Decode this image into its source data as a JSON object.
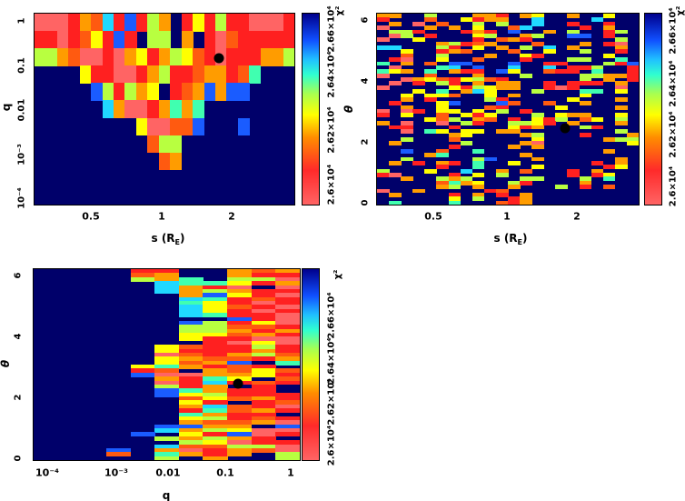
{
  "palette": [
    "#ff6464",
    "#ff2020",
    "#ff5a10",
    "#ff9c00",
    "#ffff00",
    "#b8ff40",
    "#40ffb0",
    "#20d8ff",
    "#1a5cff",
    "#00006a"
  ],
  "chart_data": [
    {
      "type": "heatmap",
      "xlabel_parts": [
        "s (R",
        "E",
        ")"
      ],
      "ylabel": "q",
      "xscale": "log",
      "yscale": "log",
      "xticks": [
        "0.5",
        "1",
        "2"
      ],
      "yticks": [
        "1",
        "0.1",
        "0.01",
        "10⁻³",
        "10⁻⁴"
      ],
      "xlim": [
        0.28,
        3.75
      ],
      "ylim": [
        7e-05,
        1.5
      ],
      "colorbar": {
        "label": "χ²",
        "ticks": [
          "2.6×10⁴",
          "2.62×10⁴",
          "2.64×10⁴",
          "2.66×10⁴"
        ]
      },
      "grid_levels_note": "0 = lowest χ², 9 = highest χ²; rows top→bottom",
      "grid": [
        "00013271815391415110001",
        "11012418195593910211111",
        "55320010341354210111335",
        "99994110013511233126999",
        "99999851534912383889999",
        "99999973001363699999999",
        "99999999940022899989999",
        "99999999992559999999999",
        "99999999999239999999999",
        "99999999999999999999999",
        "99999999999999999999999"
      ],
      "best_fit": {
        "s": 1.75,
        "q": 0.15
      }
    },
    {
      "type": "heatmap",
      "xlabel_parts": [
        "s (R",
        "E",
        ")"
      ],
      "ylabel": "θ",
      "xscale": "log",
      "xticks": [
        "0.5",
        "1",
        "2"
      ],
      "yticks": [
        "0",
        "2",
        "4",
        "6"
      ],
      "xlim": [
        0.28,
        3.75
      ],
      "ylim": [
        0,
        6.28
      ],
      "colorbar": {
        "label": "χ²",
        "ticks": [
          "2.6×10⁴",
          "2.62×10⁴",
          "2.64×10⁴",
          "2.66×10⁴"
        ]
      },
      "grid": [
        "3399599933193499399499",
        "1999299413399799997999",
        "9390929959599799199199",
        "0999393949927999919399",
        "9551999131989939599159",
        "9059199945993599889199",
        "0994999919231999999959",
        "9999935123999299939109",
        "7799951949395979399939",
        "9949913299929949959919",
        "9929959993994199999499",
        "9109949929991999559969",
        "6939298899989911999518",
        "9099967989979979115991",
        "6439693119849921196991",
        "0999299939995999955331",
        "9903421452199999959391",
        "9091951939339919111939",
        "0999994154339910199909",
        "9994969374999599966949",
        "9949442994939999949999",
        "9939199995199999499939",
        "9199948999829929939999",
        "9939949992199994999939",
        "0901944949591999999999",
        "1949929414999594339949",
        "9999425932919415924959",
        "3909909519955419399939",
        "9119991999941399951999",
        "9909649449339999999959",
        "9999993499993599919993",
        "9959992999999499999355",
        "9399999599993099999994",
        "9999991999939399999999",
        "9989929969999999999399",
        "9999369999993999999999",
        "9959999958999399999939",
        "9391931969949999991939",
        "9999919969999499999149",
        "5999499799392999193999",
        "1099991949599999191499",
        "9939953599995599959699",
        "9999926349951999939999",
        "9999935939939995919299",
        "0993999991299999999999",
        "9399991939193999999999",
        "9999994959913999999999",
        "9699996999213999999999"
      ],
      "best_fit": {
        "s": 1.75,
        "theta": 2.48
      }
    },
    {
      "type": "heatmap",
      "xlabel": "q",
      "ylabel": "θ",
      "xscale": "log",
      "xticks": [
        "10⁻⁴",
        "10⁻³",
        "0.01",
        "0.1",
        "1"
      ],
      "yticks": [
        "0",
        "2",
        "4",
        "6"
      ],
      "xlim": [
        7e-05,
        2.3
      ],
      "ylim": [
        0,
        6.28
      ],
      "colorbar": {
        "label": "χ²",
        "ticks": [
          "2.6×10⁴",
          "2.62×10⁴",
          "2.64×10⁴",
          "2.66×10⁴"
        ]
      },
      "grid": [
        "99991199323",
        "99992399311",
        "99995369550",
        "99999766413",
        "99999731090",
        "99999735311",
        "99999938410",
        "99999976121",
        "99999964101",
        "99999974210",
        "99999974101",
        "99999976110",
        "99999999810",
        "99999985140",
        "99999955221",
        "99999955313",
        "99999944231",
        "99999941100",
        "99999991040",
        "99999421151",
        "99999411131",
        "99999021352",
        "99999432213",
        "99999423896",
        "99994631219",
        "99991293242",
        "99998003341",
        "99999316492",
        "99999017121",
        "99999513919",
        "99999863119",
        "99999845111",
        "99999924231",
        "99999941912",
        "99999937210",
        "99999916231",
        "99999963119",
        "99999945121",
        "99999932230",
        "99999883398",
        "99999735400",
        "99998941801",
        "99999535319",
        "99999954011",
        "99999722550",
        "99989301320",
        "99929631395",
        "99999593995"
      ],
      "best_fit": {
        "q": 0.15,
        "theta": 2.48
      }
    }
  ]
}
